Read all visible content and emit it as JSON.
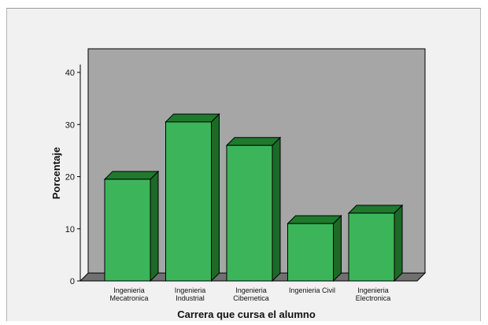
{
  "chart_data": {
    "type": "bar",
    "xlabel": "Carrera que cursa el alumno",
    "ylabel": "Porcentaje",
    "ylim": [
      0,
      40
    ],
    "yticks": [
      0,
      10,
      20,
      30,
      40
    ],
    "categories": [
      [
        "Ingenieria",
        "Mecatronica"
      ],
      [
        "Ingenieria",
        "Industrial"
      ],
      [
        "Ingenieria",
        "Cibernetica"
      ],
      [
        "Ingenieria Civil"
      ],
      [
        "Ingenieria",
        "Electronica"
      ]
    ],
    "values": [
      19.5,
      30.5,
      26,
      11,
      13
    ],
    "grid": false,
    "style": "3d",
    "colors": {
      "bar_front": "#3cb55a",
      "bar_top": "#1e7a2c",
      "bar_side": "#1b6a27",
      "wall": "#a6a6a6",
      "floor": "#707070",
      "background": "#f1f1f1"
    }
  }
}
